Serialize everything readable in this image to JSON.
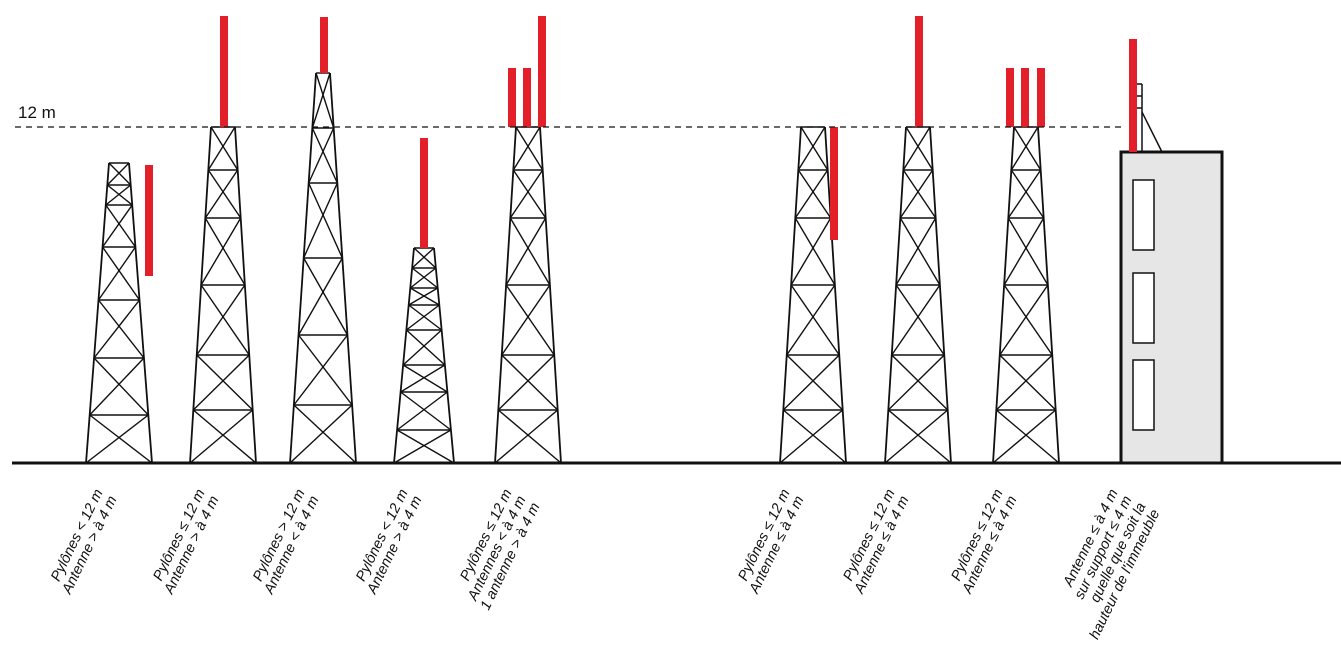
{
  "reference_line": {
    "label": "12 m"
  },
  "colors": {
    "antenna": "#e3202a",
    "structure": "#111111",
    "building_fill": "#e6e6e6"
  },
  "cases": [
    {
      "id": "case-1",
      "caption": [
        "Pylônes < 12 m",
        "Antenne > à 4 m"
      ]
    },
    {
      "id": "case-2",
      "caption": [
        "Pylônes ≤ 12 m",
        "Antenne > à 4 m"
      ]
    },
    {
      "id": "case-3",
      "caption": [
        "Pylônes > 12 m",
        "Antenne < à 4 m"
      ]
    },
    {
      "id": "case-4",
      "caption": [
        "Pylônes < 12 m",
        "Antenne > à 4 m"
      ]
    },
    {
      "id": "case-5",
      "caption": [
        "Pylônes ≤ 12 m",
        "Antennes < à 4 m",
        "1 antenne > à 4 m"
      ]
    },
    {
      "id": "case-6",
      "caption": [
        "Pylônes ≤ 12 m",
        "Antenne ≤ à 4 m"
      ]
    },
    {
      "id": "case-7",
      "caption": [
        "Pylônes ≤ 12 m",
        "Antenne ≤ à 4 m"
      ]
    },
    {
      "id": "case-8",
      "caption": [
        "Pylônes ≤ 12 m",
        "Antenne ≤ à 4 m"
      ]
    },
    {
      "id": "case-9",
      "caption": [
        "Antenne ≤ à 4 m",
        "sur support ≤ 4 m",
        "quelle que soit la",
        "hauteur de l'immeuble"
      ]
    }
  ]
}
